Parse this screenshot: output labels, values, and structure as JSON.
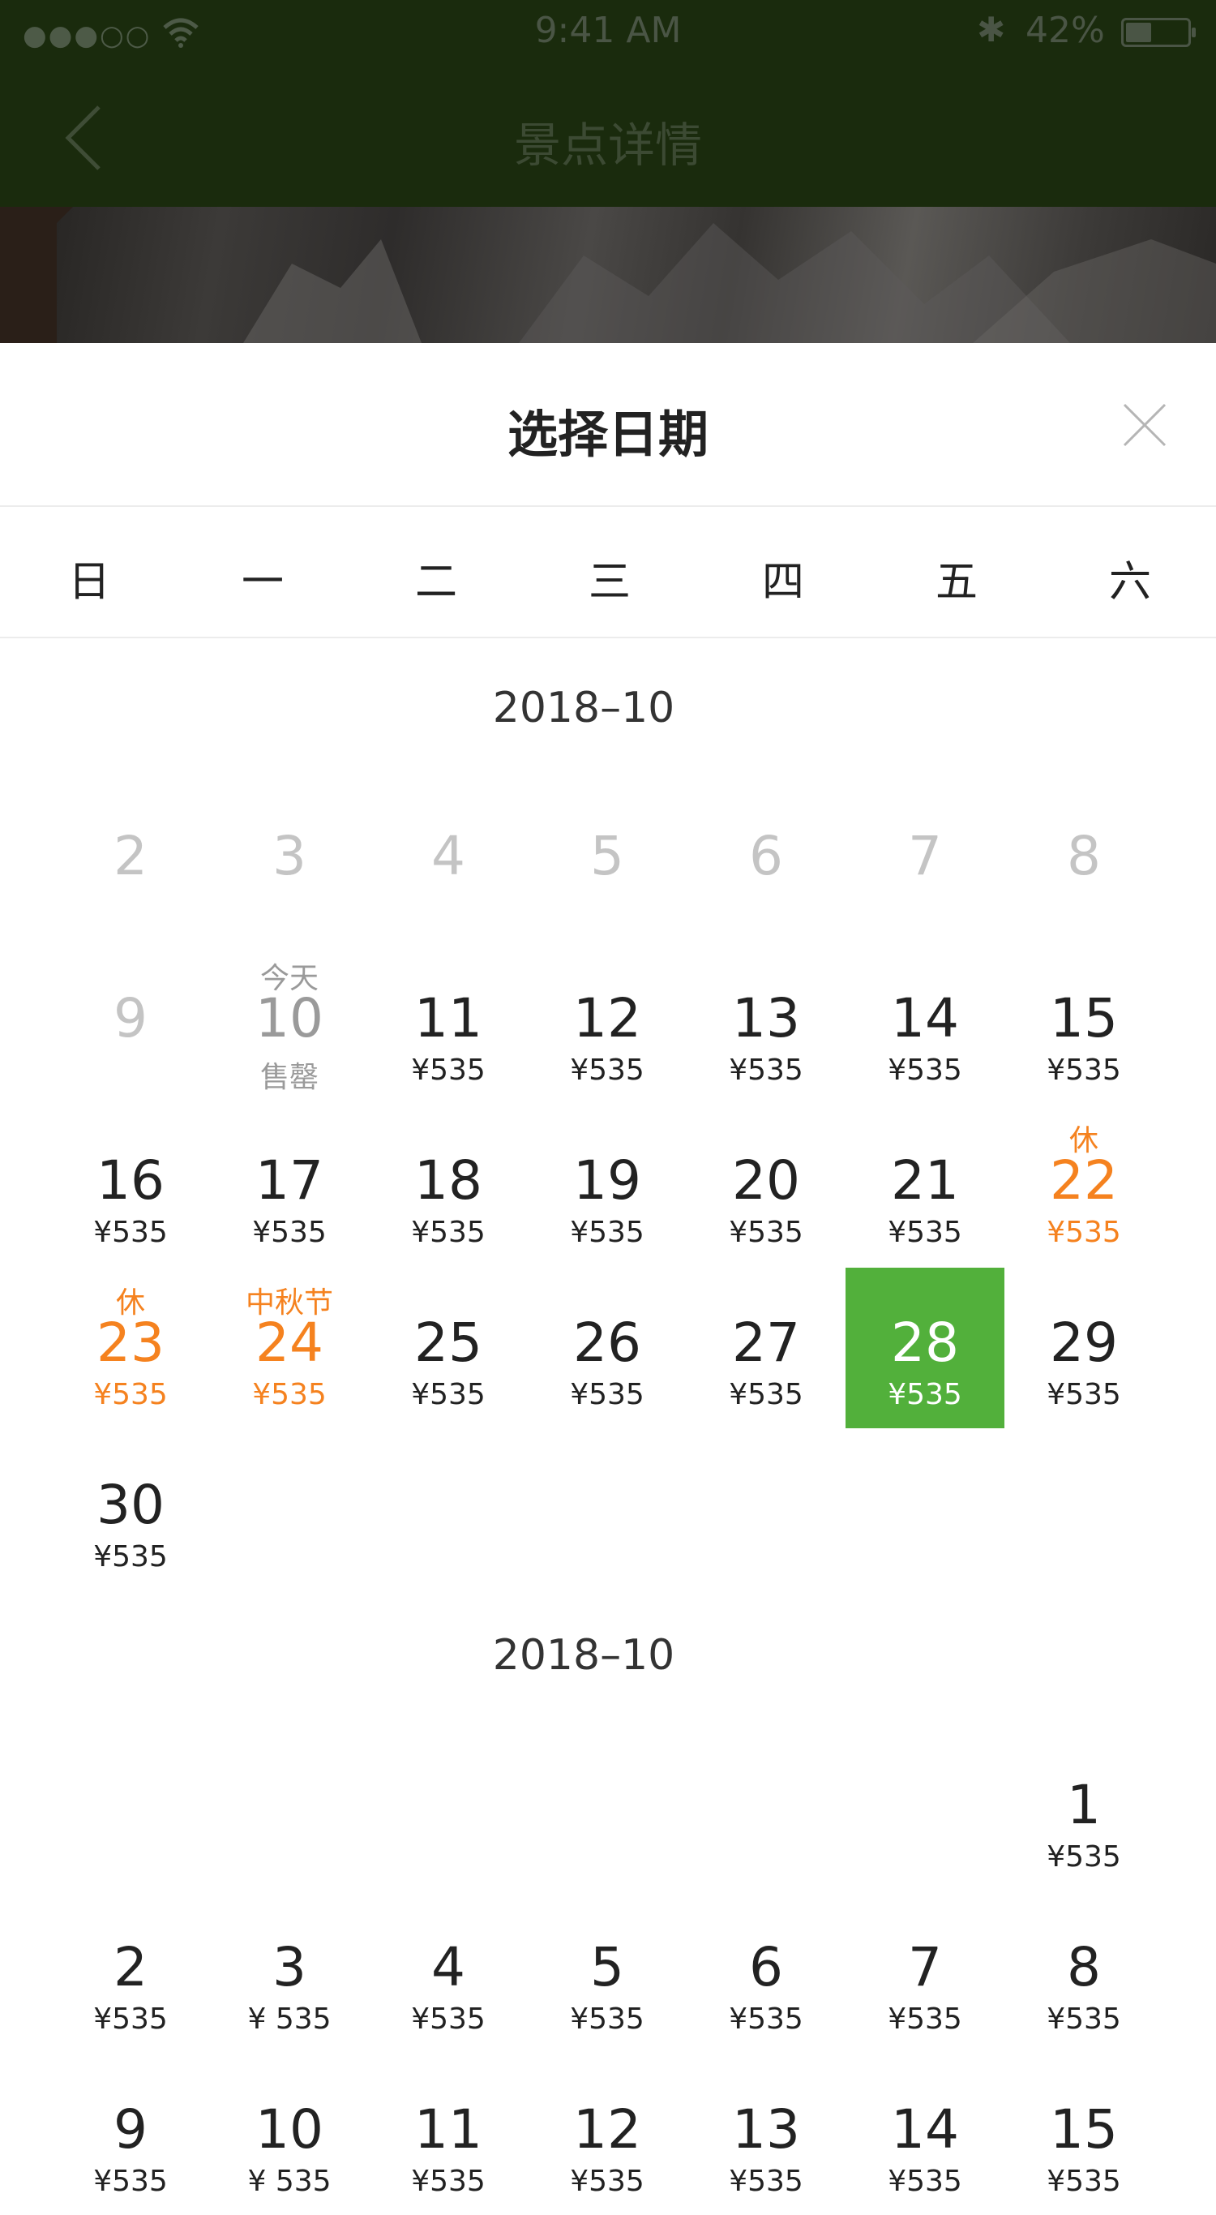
{
  "status_bar": {
    "signal": "●●●○○",
    "time": "9:41 AM",
    "bluetooth": "✱",
    "battery_percent": "42%",
    "battery_level": 0.42
  },
  "nav": {
    "title": "景点详情",
    "back_icon": "chevron-left-icon"
  },
  "sheet": {
    "title": "选择日期",
    "close_icon": "close-icon",
    "weekdays": [
      "日",
      "一",
      "二",
      "三",
      "四",
      "五",
      "六"
    ]
  },
  "months": [
    {
      "title": "2018–10",
      "days": [
        {
          "day": "2",
          "status": "past"
        },
        {
          "day": "3",
          "status": "past"
        },
        {
          "day": "4",
          "status": "past"
        },
        {
          "day": "5",
          "status": "past"
        },
        {
          "day": "6",
          "status": "past"
        },
        {
          "day": "7",
          "status": "past"
        },
        {
          "day": "8",
          "status": "past"
        },
        {
          "day": "9",
          "status": "past"
        },
        {
          "day": "10",
          "note": "今天",
          "price": "售罄",
          "status": "soldout"
        },
        {
          "day": "11",
          "price": "¥535"
        },
        {
          "day": "12",
          "price": "¥535"
        },
        {
          "day": "13",
          "price": "¥535"
        },
        {
          "day": "14",
          "price": "¥535"
        },
        {
          "day": "15",
          "price": "¥535"
        },
        {
          "day": "16",
          "price": "¥535"
        },
        {
          "day": "17",
          "price": "¥535"
        },
        {
          "day": "18",
          "price": "¥535"
        },
        {
          "day": "19",
          "price": "¥535"
        },
        {
          "day": "20",
          "price": "¥535"
        },
        {
          "day": "21",
          "price": "¥535"
        },
        {
          "day": "22",
          "note": "休",
          "price": "¥535",
          "status": "holiday"
        },
        {
          "day": "23",
          "note": "休",
          "price": "¥535",
          "status": "holiday"
        },
        {
          "day": "24",
          "note": "中秋节",
          "price": "¥535",
          "status": "holiday"
        },
        {
          "day": "25",
          "price": "¥535"
        },
        {
          "day": "26",
          "price": "¥535"
        },
        {
          "day": "27",
          "price": "¥535"
        },
        {
          "day": "28",
          "price": "¥535",
          "status": "selected"
        },
        {
          "day": "29",
          "price": "¥535"
        },
        {
          "day": "30",
          "price": "¥535"
        }
      ]
    },
    {
      "title": "2018–10",
      "days": [
        {
          "day": "1",
          "price": "¥535"
        },
        {
          "day": "2",
          "price": "¥535"
        },
        {
          "day": "3",
          "price": "¥ 535"
        },
        {
          "day": "4",
          "price": "¥535"
        },
        {
          "day": "5",
          "price": "¥535"
        },
        {
          "day": "6",
          "price": "¥535"
        },
        {
          "day": "7",
          "price": "¥535"
        },
        {
          "day": "8",
          "price": "¥535"
        },
        {
          "day": "9",
          "price": "¥535"
        },
        {
          "day": "10",
          "price": "¥ 535"
        },
        {
          "day": "11",
          "price": "¥535"
        },
        {
          "day": "12",
          "price": "¥535"
        },
        {
          "day": "13",
          "price": "¥535"
        },
        {
          "day": "14",
          "price": "¥535"
        },
        {
          "day": "15",
          "price": "¥535"
        }
      ]
    }
  ],
  "colors": {
    "selected": "#52b03b",
    "holiday": "#f5821f",
    "past": "#c4c4c4",
    "soldout": "#9a9a9a",
    "nav_background": "#1a2b0d"
  }
}
